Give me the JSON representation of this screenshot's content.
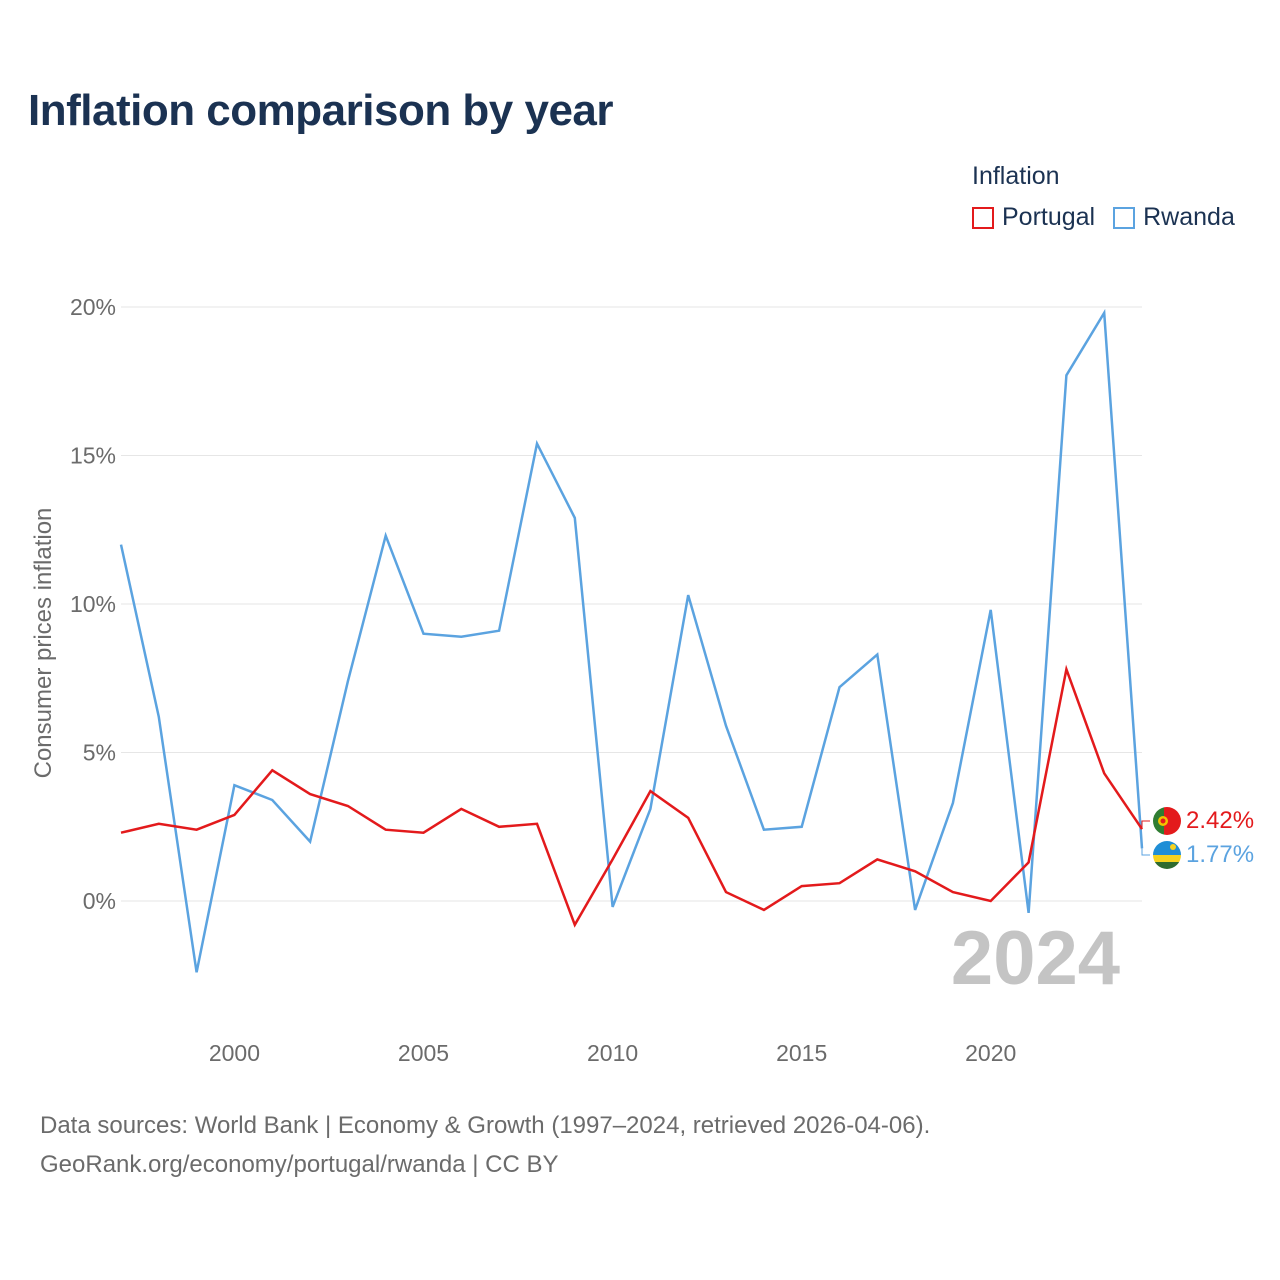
{
  "title": "Inflation comparison by year",
  "legend": {
    "title": "Inflation",
    "items": [
      {
        "label": "Portugal",
        "color": "#e31a1c"
      },
      {
        "label": "Rwanda",
        "color": "#5ba3e0"
      }
    ]
  },
  "source": {
    "line1": "Data sources: World Bank | Economy & Growth (1997–2024, retrieved 2026-04-06).",
    "line2": "GeoRank.org/economy/portugal/rwanda | CC BY"
  },
  "chart_data": {
    "type": "line",
    "ylabel": "Consumer prices inflation",
    "xlabel": "",
    "year_label": "2024",
    "xlim": [
      1997,
      2024
    ],
    "ylim": [
      -3.6,
      20
    ],
    "x_ticks": [
      2000,
      2005,
      2010,
      2015,
      2020
    ],
    "y_ticks": [
      0,
      5,
      10,
      15,
      20
    ],
    "y_tick_labels": [
      "0%",
      "5%",
      "10%",
      "15%",
      "20%"
    ],
    "x": [
      1997,
      1998,
      1999,
      2000,
      2001,
      2002,
      2003,
      2004,
      2005,
      2006,
      2007,
      2008,
      2009,
      2010,
      2011,
      2012,
      2013,
      2014,
      2015,
      2016,
      2017,
      2018,
      2019,
      2020,
      2021,
      2022,
      2023,
      2024
    ],
    "series": [
      {
        "name": "Portugal",
        "color": "#e31a1c",
        "end_label": "2.42%",
        "values": [
          2.3,
          2.6,
          2.4,
          2.9,
          4.4,
          3.6,
          3.2,
          2.4,
          2.3,
          3.1,
          2.5,
          2.6,
          -0.8,
          1.4,
          3.7,
          2.8,
          0.3,
          -0.3,
          0.5,
          0.6,
          1.4,
          1.0,
          0.3,
          0.0,
          1.3,
          7.8,
          4.3,
          2.42
        ]
      },
      {
        "name": "Rwanda",
        "color": "#5ba3e0",
        "end_label": "1.77%",
        "values": [
          12.0,
          6.2,
          -2.4,
          3.9,
          3.4,
          2.0,
          7.4,
          12.3,
          9.0,
          8.9,
          9.1,
          15.4,
          12.9,
          -0.2,
          3.1,
          10.3,
          5.9,
          2.4,
          2.5,
          7.2,
          8.3,
          -0.3,
          3.3,
          9.8,
          -0.4,
          17.7,
          19.8,
          1.77
        ]
      }
    ]
  }
}
